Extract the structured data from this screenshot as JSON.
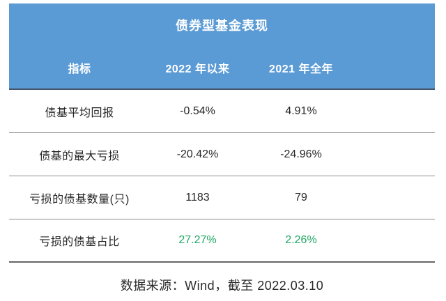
{
  "colors": {
    "header_background": "#5B9BD5",
    "header_text": "#FFFFFF",
    "header_underline": "#44546A",
    "row_separator": "#8C8C8C",
    "table_bottom_border": "#666666",
    "body_text": "#262626",
    "highlight_green": "#21A663"
  },
  "chart_data": {
    "type": "table",
    "title": "债券型基金表现",
    "columns": [
      "指标",
      "2022 年以来",
      "2021 年全年"
    ],
    "rows": [
      [
        "债基平均回报",
        "-0.54%",
        "4.91%"
      ],
      [
        "债基的最大亏损",
        "-20.42%",
        "-24.96%"
      ],
      [
        "亏损的债基数量(只)",
        "1183",
        "79"
      ],
      [
        "亏损的债基占比",
        "27.27%",
        "2.26%"
      ]
    ],
    "highlight": {
      "row_label": "亏损的债基占比",
      "style": "values rendered in green (#21A663)"
    },
    "source_note": "数据来源：Wind，截至 2022.03.10",
    "layout_hints": {
      "header_style": "two blue banner rows (title + column headers), white bold text",
      "grid": "horizontal separators only, no vertical gridlines",
      "alignment": "all cells center-aligned, trailing empty space on right side"
    }
  }
}
